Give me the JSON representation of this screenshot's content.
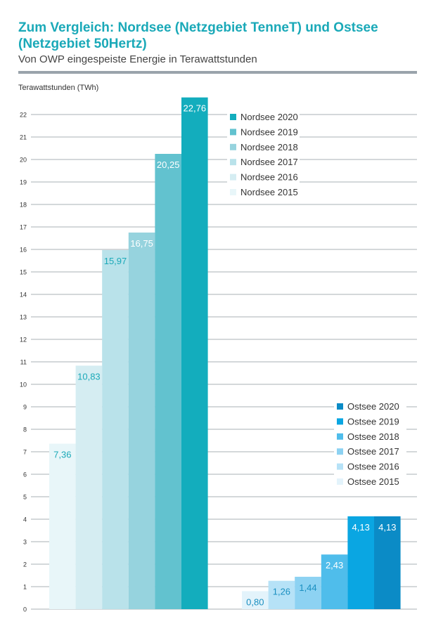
{
  "header": {
    "title": "Zum Vergleich: Nordsee (Netzgebiet TenneT) und Ostsee (Netzgebiet 50Hertz)",
    "subtitle": "Von OWP eingespeiste Energie in Terawattstunden",
    "unit_label": "Terawattstunden (TWh)"
  },
  "chart_data": {
    "type": "bar",
    "title": "Zum Vergleich: Nordsee (Netzgebiet TenneT) und Ostsee (Netzgebiet 50Hertz)",
    "subtitle": "Von OWP eingespeiste Energie in Terawattstunden",
    "ylabel": "Terawattstunden (TWh)",
    "xlabel": "",
    "ylim": [
      0,
      22
    ],
    "yticks": [
      0,
      1,
      2,
      3,
      4,
      5,
      6,
      7,
      8,
      9,
      10,
      11,
      12,
      13,
      14,
      15,
      16,
      17,
      18,
      19,
      20,
      21,
      22
    ],
    "grid": true,
    "groups": [
      {
        "name": "Nordsee",
        "legend_position": "top-right",
        "bars": [
          {
            "series": "Nordsee 2015",
            "value": 7.36,
            "label": "7,36",
            "color": "#e8f6f9",
            "label_color": "#1aa9b8"
          },
          {
            "series": "Nordsee 2016",
            "value": 10.83,
            "label": "10,83",
            "color": "#d5edf2",
            "label_color": "#1aa9b8"
          },
          {
            "series": "Nordsee 2017",
            "value": 15.97,
            "label": "15,97",
            "color": "#b9e2ea",
            "label_color": "#1aa9b8"
          },
          {
            "series": "Nordsee 2018",
            "value": 16.75,
            "label": "16,75",
            "color": "#96d3de",
            "label_color": "#ffffff"
          },
          {
            "series": "Nordsee 2019",
            "value": 20.25,
            "label": "20,25",
            "color": "#62c2cf",
            "label_color": "#ffffff"
          },
          {
            "series": "Nordsee 2020",
            "value": 22.76,
            "label": "22,76",
            "color": "#13adbd",
            "label_color": "#ffffff"
          }
        ]
      },
      {
        "name": "Ostsee",
        "legend_position": "middle-right",
        "bars": [
          {
            "series": "Ostsee 2015",
            "value": 0.8,
            "label": "0,80",
            "color": "#e3f3fb",
            "label_color": "#1a8fc0"
          },
          {
            "series": "Ostsee 2016",
            "value": 1.26,
            "label": "1,26",
            "color": "#b6e2f7",
            "label_color": "#1a8fc0"
          },
          {
            "series": "Ostsee 2017",
            "value": 1.44,
            "label": "1,44",
            "color": "#8dd2f2",
            "label_color": "#1a8fc0"
          },
          {
            "series": "Ostsee 2018",
            "value": 2.43,
            "label": "2,43",
            "color": "#4fbdeb",
            "label_color": "#ffffff"
          },
          {
            "series": "Ostsee 2019",
            "value": 4.13,
            "label": "4,13",
            "color": "#0aa6e2",
            "label_color": "#ffffff"
          },
          {
            "series": "Ostsee 2020",
            "value": 4.13,
            "label": "4,13",
            "color": "#0b8bc6",
            "label_color": "#ffffff"
          }
        ]
      }
    ],
    "legends": [
      {
        "group": "Nordsee",
        "entries": [
          {
            "label": "Nordsee 2020",
            "color": "#13adbd"
          },
          {
            "label": "Nordsee 2019",
            "color": "#62c2cf"
          },
          {
            "label": "Nordsee 2018",
            "color": "#96d3de"
          },
          {
            "label": "Nordsee 2017",
            "color": "#b9e2ea"
          },
          {
            "label": "Nordsee 2016",
            "color": "#d5edf2"
          },
          {
            "label": "Nordsee 2015",
            "color": "#e8f6f9"
          }
        ]
      },
      {
        "group": "Ostsee",
        "entries": [
          {
            "label": "Ostsee 2020",
            "color": "#0b8bc6"
          },
          {
            "label": "Ostsee 2019",
            "color": "#0aa6e2"
          },
          {
            "label": "Ostsee 2018",
            "color": "#4fbdeb"
          },
          {
            "label": "Ostsee 2017",
            "color": "#8dd2f2"
          },
          {
            "label": "Ostsee 2016",
            "color": "#b6e2f7"
          },
          {
            "label": "Ostsee 2015",
            "color": "#e3f3fb"
          }
        ]
      }
    ]
  }
}
